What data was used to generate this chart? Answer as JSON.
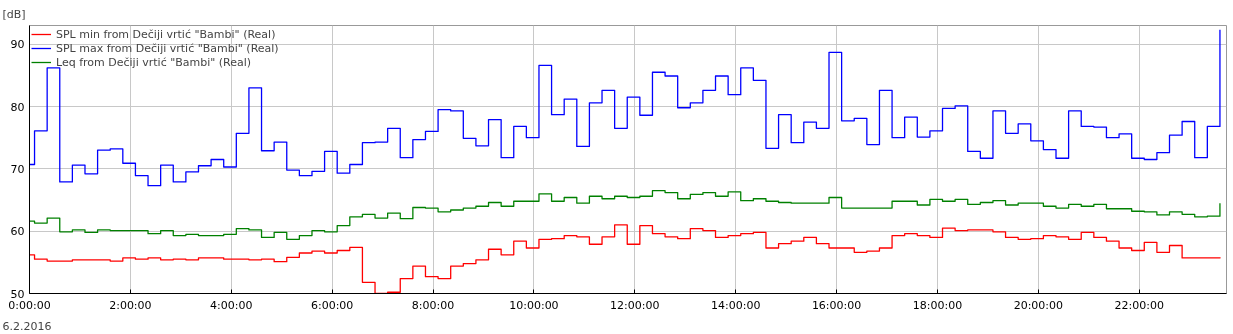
{
  "chart_data": {
    "type": "step",
    "ylabel": "[dB]",
    "annotations": [
      "6.2.2016"
    ],
    "x": [
      0,
      0.1,
      0.35,
      0.6,
      0.85,
      1.1,
      1.35,
      1.6,
      1.85,
      2.1,
      2.35,
      2.6,
      2.85,
      3.1,
      3.35,
      3.6,
      3.85,
      4.1,
      4.35,
      4.6,
      4.85,
      5.1,
      5.35,
      5.6,
      5.85,
      6.1,
      6.35,
      6.6,
      6.85,
      7.1,
      7.35,
      7.6,
      7.85,
      8.1,
      8.35,
      8.6,
      8.85,
      9.1,
      9.35,
      9.6,
      9.85,
      10.1,
      10.35,
      10.6,
      10.85,
      11.1,
      11.35,
      11.6,
      11.85,
      12.1,
      12.35,
      12.6,
      12.85,
      13.1,
      13.35,
      13.6,
      13.85,
      14.1,
      14.35,
      14.6,
      14.85,
      15.1,
      15.35,
      15.6,
      15.85,
      16.1,
      16.35,
      16.6,
      16.85,
      17.1,
      17.35,
      17.6,
      17.85,
      18.1,
      18.35,
      18.6,
      18.85,
      19.1,
      19.35,
      19.6,
      19.85,
      20.1,
      20.35,
      20.6,
      20.85,
      21.1,
      21.35,
      21.6,
      21.85,
      22.1,
      22.35,
      22.6,
      22.85,
      23.1,
      23.35,
      23.6
    ],
    "series": [
      {
        "name": "SPL min from Dečiji vrtić \"Bambi\" (Real)",
        "color": "#ff0000",
        "values": [
          56.2,
          55.5,
          55.2,
          55.2,
          55.4,
          55.4,
          55.4,
          55.2,
          55.7,
          55.5,
          55.7,
          55.4,
          55.5,
          55.4,
          55.7,
          55.7,
          55.5,
          55.5,
          55.4,
          55.5,
          55.1,
          55.8,
          56.5,
          56.8,
          56.5,
          56.9,
          57.4,
          51.8,
          50.0,
          50.2,
          52.4,
          54.4,
          52.7,
          52.4,
          54.4,
          54.8,
          55.4,
          57.1,
          56.2,
          58.4,
          57.3,
          58.7,
          58.8,
          59.3,
          59.1,
          57.9,
          59.1,
          61.0,
          57.9,
          60.9,
          59.6,
          59.1,
          58.8,
          60.4,
          60.1,
          59.0,
          59.3,
          59.6,
          59.8,
          57.3,
          58.0,
          58.4,
          59.0,
          58.0,
          57.3,
          57.3,
          56.6,
          56.8,
          57.3,
          59.3,
          59.6,
          59.3,
          59.0,
          60.5,
          60.1,
          60.2,
          60.2,
          59.9,
          59.0,
          58.7,
          58.8,
          59.3,
          59.1,
          58.7,
          59.8,
          59.0,
          58.4,
          57.3,
          56.9,
          58.2,
          56.6,
          57.7,
          55.7,
          55.7,
          55.7,
          55.8
        ]
      },
      {
        "name": "SPL max from Dečiji vrtić \"Bambi\" (Real)",
        "color": "#0000ff",
        "values": [
          70.7,
          76.1,
          86.2,
          67.9,
          70.6,
          69.2,
          73.0,
          73.2,
          70.9,
          68.9,
          67.3,
          70.6,
          67.9,
          69.5,
          70.5,
          71.5,
          70.3,
          75.7,
          83.0,
          72.9,
          74.3,
          69.8,
          68.9,
          69.6,
          72.8,
          69.3,
          70.7,
          74.2,
          74.3,
          76.5,
          71.8,
          74.7,
          76.0,
          79.5,
          79.3,
          74.9,
          73.7,
          77.9,
          71.8,
          76.8,
          75.0,
          86.6,
          78.7,
          81.2,
          73.6,
          80.6,
          82.6,
          76.5,
          81.5,
          78.6,
          85.5,
          84.9,
          79.8,
          80.6,
          82.6,
          84.9,
          81.9,
          86.2,
          84.2,
          73.3,
          78.7,
          74.2,
          77.5,
          76.5,
          88.7,
          77.7,
          78.1,
          73.9,
          82.6,
          75.0,
          78.3,
          75.1,
          76.1,
          79.7,
          80.1,
          72.8,
          71.7,
          79.3,
          75.7,
          77.2,
          74.5,
          73.1,
          71.7,
          79.3,
          76.8,
          76.7,
          75.0,
          75.6,
          71.7,
          71.5,
          72.6,
          75.4,
          77.6,
          71.8,
          76.8,
          92.3
        ]
      },
      {
        "name": "Leq from Dečiji vrtić \"Bambi\" (Real)",
        "color": "#008000",
        "values": [
          61.6,
          61.3,
          62.1,
          59.9,
          60.2,
          59.8,
          60.2,
          60.1,
          60.1,
          60.1,
          59.6,
          60.1,
          59.3,
          59.5,
          59.3,
          59.3,
          59.5,
          60.4,
          60.2,
          59.0,
          59.8,
          58.7,
          59.3,
          60.1,
          59.9,
          60.9,
          62.3,
          62.7,
          62.1,
          62.9,
          62.0,
          63.8,
          63.7,
          63.1,
          63.4,
          63.7,
          64.0,
          64.6,
          64.0,
          64.8,
          64.8,
          66.0,
          64.8,
          65.4,
          64.5,
          65.6,
          65.2,
          65.6,
          65.4,
          65.6,
          66.5,
          66.2,
          65.2,
          65.9,
          66.2,
          65.6,
          66.3,
          64.9,
          65.2,
          64.8,
          64.6,
          64.5,
          64.5,
          64.5,
          65.4,
          63.7,
          63.7,
          63.7,
          63.7,
          64.8,
          64.8,
          64.2,
          65.1,
          64.8,
          65.1,
          64.3,
          64.6,
          64.9,
          64.2,
          64.5,
          64.5,
          64.0,
          63.7,
          64.3,
          64.0,
          64.3,
          63.6,
          63.6,
          63.2,
          63.1,
          62.6,
          63.1,
          62.7,
          62.3,
          62.4,
          64.5
        ]
      }
    ],
    "xlim": [
      0,
      23.73
    ],
    "ylim": [
      50,
      93
    ],
    "xticks": [
      {
        "value": 0,
        "label": "0:00:00"
      },
      {
        "value": 2,
        "label": "2:00:00"
      },
      {
        "value": 4,
        "label": "4:00:00"
      },
      {
        "value": 6,
        "label": "6:00:00"
      },
      {
        "value": 8,
        "label": "8:00:00"
      },
      {
        "value": 10,
        "label": "10:00:00"
      },
      {
        "value": 12,
        "label": "12:00:00"
      },
      {
        "value": 14,
        "label": "14:00:00"
      },
      {
        "value": 16,
        "label": "16:00:00"
      },
      {
        "value": 18,
        "label": "18:00:00"
      },
      {
        "value": 20,
        "label": "20:00:00"
      },
      {
        "value": 22,
        "label": "22:00:00"
      }
    ],
    "yticks": [
      50,
      60,
      70,
      80,
      90
    ],
    "grid": true,
    "legend": "top left",
    "line_style": "solid"
  }
}
